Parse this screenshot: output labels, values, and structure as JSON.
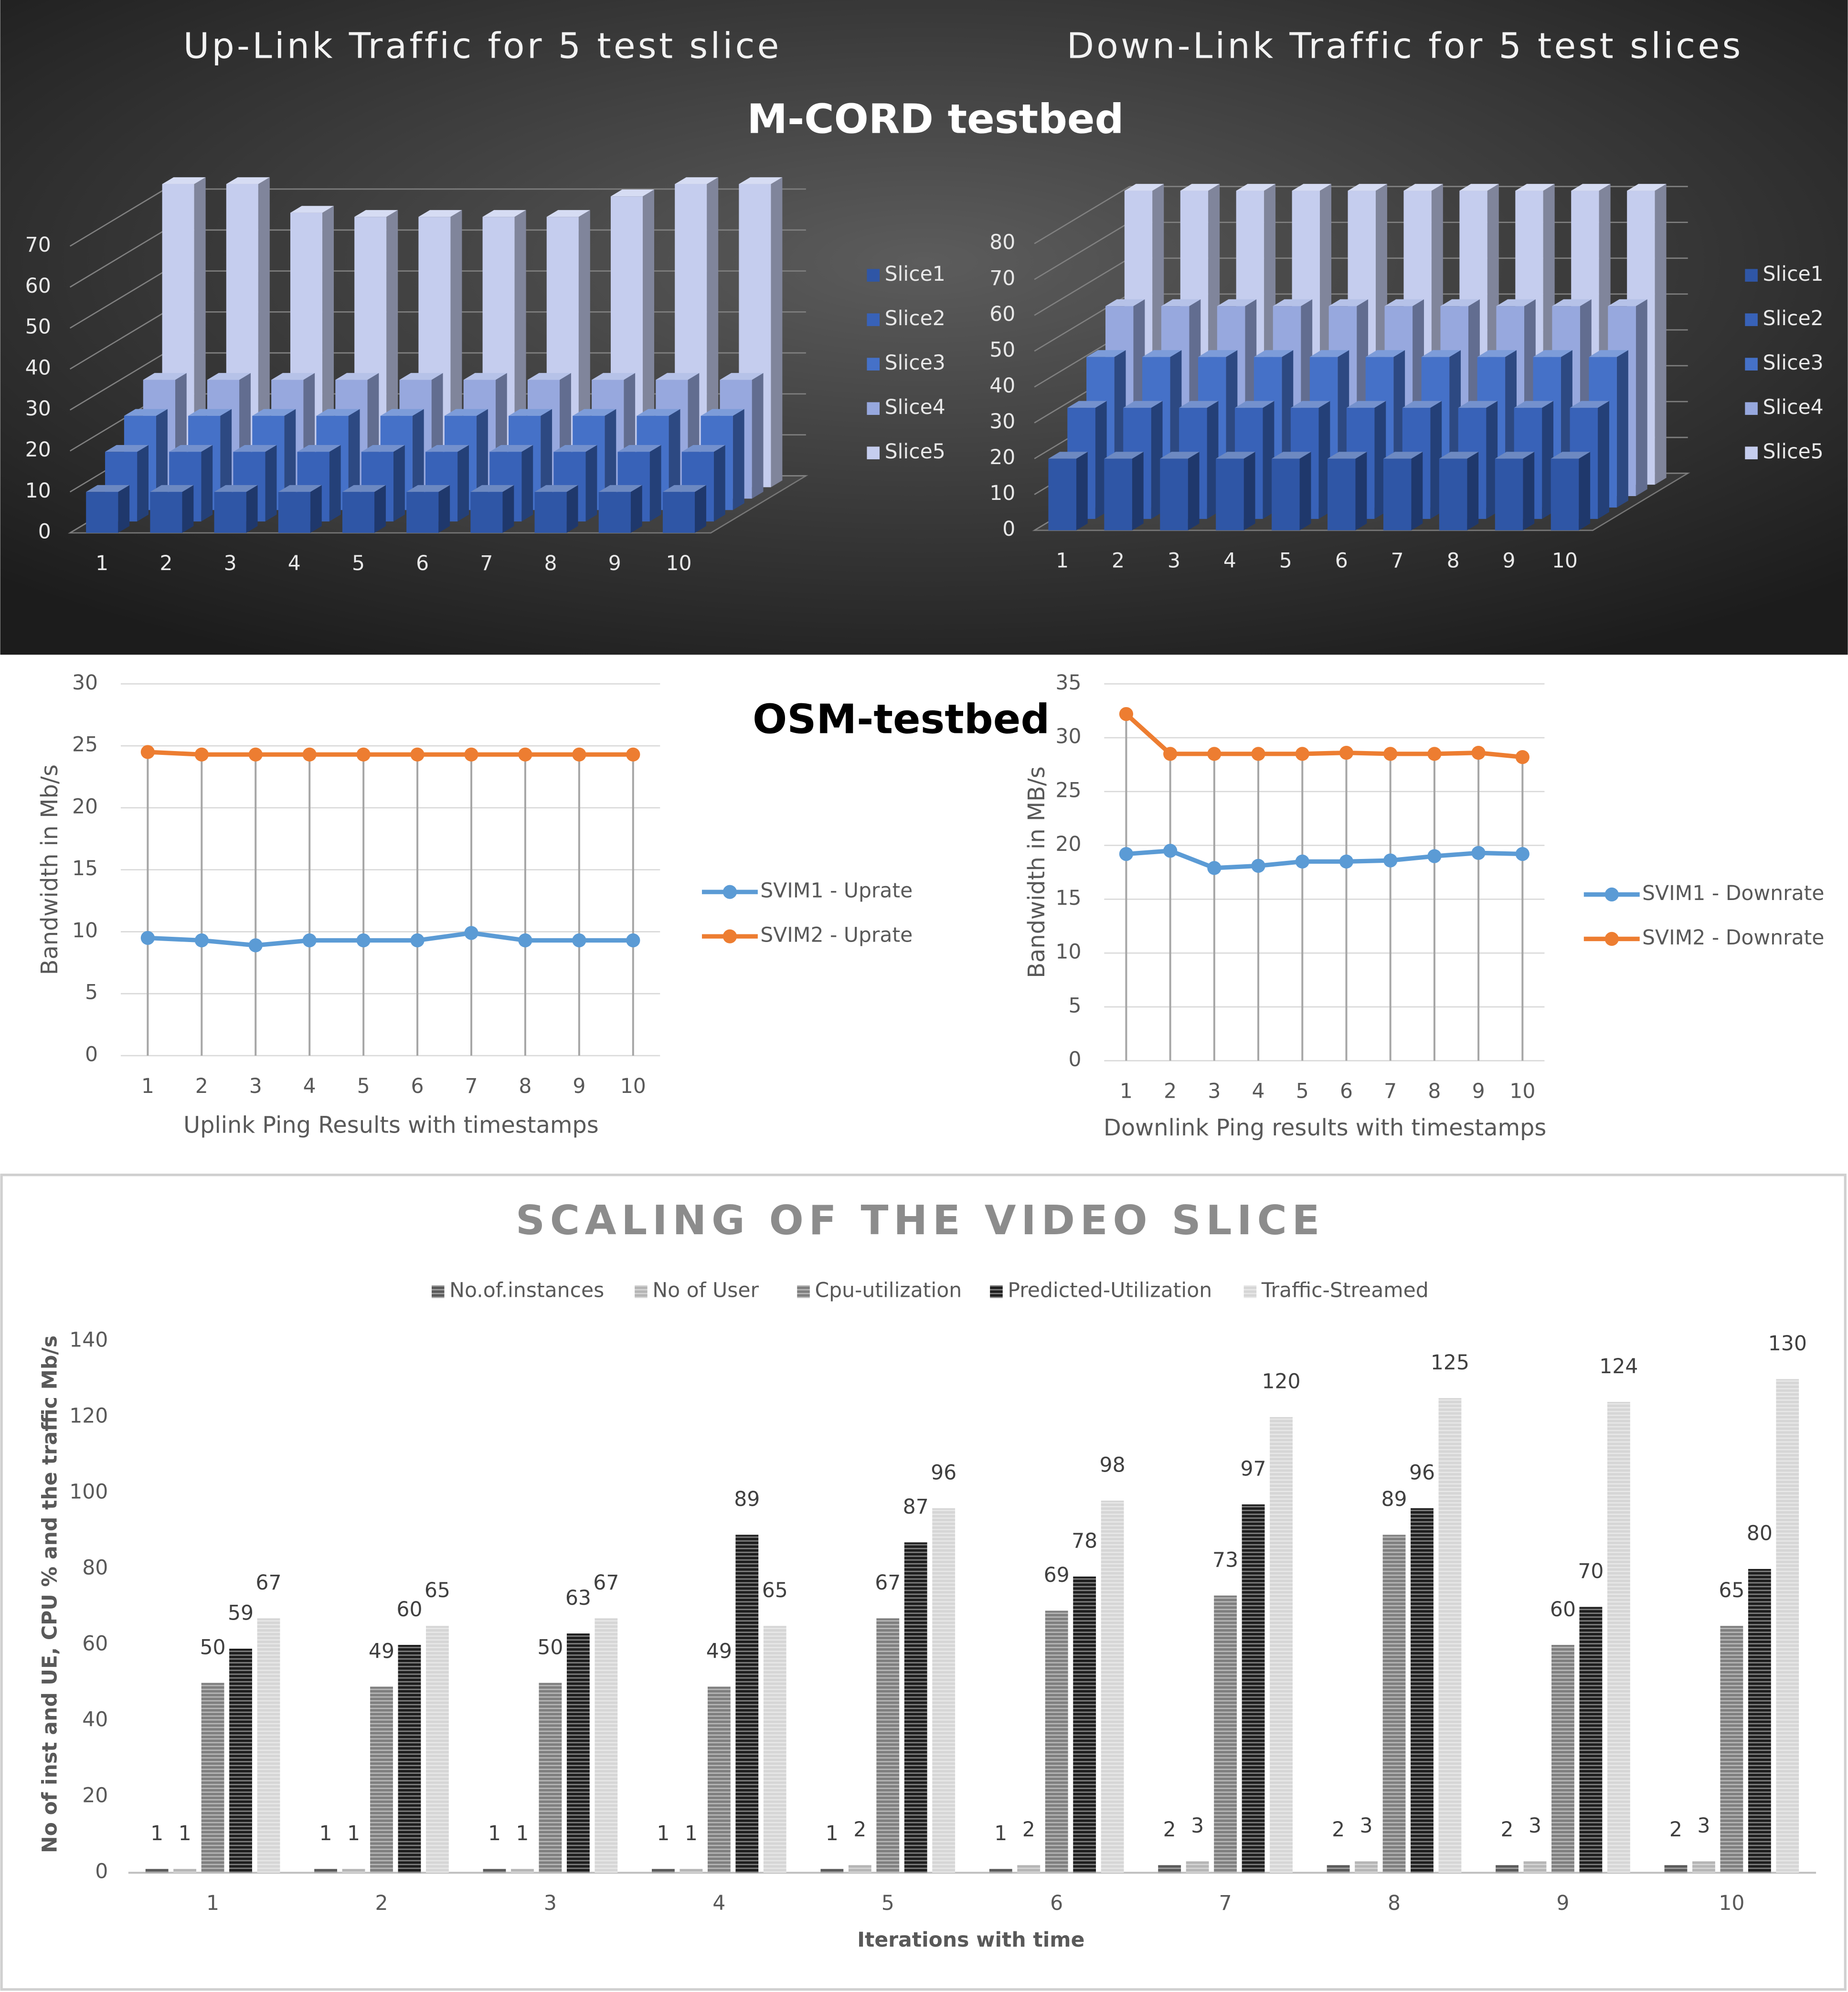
{
  "headings": [
    "M-CORD testbed",
    "OSM-testbed"
  ],
  "chart_data": [
    {
      "type": "bar3d",
      "title": "Up-Link Traffic for 5 test slice",
      "categories": [
        "1",
        "2",
        "3",
        "4",
        "5",
        "6",
        "7",
        "8",
        "9",
        "10"
      ],
      "series": [
        {
          "name": "Slice1",
          "color": "#2f56a6",
          "values": [
            10,
            10,
            10,
            10,
            10,
            10,
            10,
            10,
            10,
            10
          ]
        },
        {
          "name": "Slice2",
          "color": "#3862b8",
          "values": [
            17,
            17,
            17,
            17,
            17,
            17,
            17,
            17,
            17,
            17
          ]
        },
        {
          "name": "Slice3",
          "color": "#4571c8",
          "values": [
            23,
            23,
            23,
            23,
            23,
            23,
            23,
            23,
            23,
            23
          ]
        },
        {
          "name": "Slice4",
          "color": "#97a8de",
          "values": [
            29,
            29,
            29,
            29,
            29,
            29,
            29,
            29,
            29,
            29
          ]
        },
        {
          "name": "Slice5",
          "color": "#c5cdee",
          "values": [
            74,
            74,
            67,
            66,
            66,
            66,
            66,
            71,
            74,
            74
          ]
        }
      ],
      "ylim": [
        0,
        70
      ],
      "yticks": [
        0,
        10,
        20,
        30,
        40,
        50,
        60,
        70
      ],
      "grid": true,
      "legend": "right"
    },
    {
      "type": "bar3d",
      "title": "Down-Link Traffic for 5 test slices",
      "categories": [
        "1",
        "2",
        "3",
        "4",
        "5",
        "6",
        "7",
        "8",
        "9",
        "10"
      ],
      "series": [
        {
          "name": "Slice1",
          "color": "#2f56a6",
          "values": [
            20,
            20,
            20,
            20,
            20,
            20,
            20,
            20,
            20,
            20
          ]
        },
        {
          "name": "Slice2",
          "color": "#3862b8",
          "values": [
            31,
            31,
            31,
            31,
            31,
            31,
            31,
            31,
            31,
            31
          ]
        },
        {
          "name": "Slice3",
          "color": "#4571c8",
          "values": [
            42,
            42,
            42,
            42,
            42,
            42,
            42,
            42,
            42,
            42
          ]
        },
        {
          "name": "Slice4",
          "color": "#97a8de",
          "values": [
            53,
            53,
            53,
            53,
            53,
            53,
            53,
            53,
            53,
            53
          ]
        },
        {
          "name": "Slice5",
          "color": "#c5cdee",
          "values": [
            82,
            82,
            82,
            82,
            82,
            82,
            82,
            82,
            82,
            82
          ]
        }
      ],
      "ylim": [
        0,
        80
      ],
      "yticks": [
        0,
        10,
        20,
        30,
        40,
        50,
        60,
        70,
        80
      ],
      "grid": true,
      "legend": "right"
    },
    {
      "type": "line",
      "x_label": "Uplink Ping Results with timestamps",
      "y_label": "Bandwidth in Mb/s",
      "categories": [
        "1",
        "2",
        "3",
        "4",
        "5",
        "6",
        "7",
        "8",
        "9",
        "10"
      ],
      "series": [
        {
          "name": "SVIM1 - Uprate",
          "color": "#5b9bd5",
          "values": [
            9.5,
            9.3,
            8.9,
            9.3,
            9.3,
            9.3,
            9.9,
            9.3,
            9.3,
            9.3
          ]
        },
        {
          "name": "SVIM2 - Uprate",
          "color": "#ed7d31",
          "values": [
            24.5,
            24.3,
            24.3,
            24.3,
            24.3,
            24.3,
            24.3,
            24.3,
            24.3,
            24.3
          ]
        }
      ],
      "ylim": [
        0,
        30
      ],
      "yticks": [
        0,
        5,
        10,
        15,
        20,
        25,
        30
      ],
      "grid": true,
      "legend": "right"
    },
    {
      "type": "line",
      "x_label": "Downlink Ping results with timestamps",
      "y_label": "Bandwidth in MB/s",
      "categories": [
        "1",
        "2",
        "3",
        "4",
        "5",
        "6",
        "7",
        "8",
        "9",
        "10"
      ],
      "series": [
        {
          "name": "SVIM1 - Downrate",
          "color": "#5b9bd5",
          "values": [
            19.2,
            19.5,
            17.9,
            18.1,
            18.5,
            18.5,
            18.6,
            19,
            19.3,
            19.2
          ]
        },
        {
          "name": "SVIM2 - Downrate",
          "color": "#ed7d31",
          "values": [
            32.2,
            28.5,
            28.5,
            28.5,
            28.5,
            28.6,
            28.5,
            28.5,
            28.6,
            28.2
          ]
        }
      ],
      "ylim": [
        0,
        35
      ],
      "yticks": [
        0,
        5,
        10,
        15,
        20,
        25,
        30,
        35
      ],
      "grid": true,
      "legend": "right"
    },
    {
      "type": "bar",
      "title": "SCALING OF THE VIDEO SLICE",
      "x_label": "Iterations with time",
      "y_label": "No of inst and UE, CPU % and the traffic Mb/s",
      "categories": [
        "1",
        "2",
        "3",
        "4",
        "5",
        "6",
        "7",
        "8",
        "9",
        "10"
      ],
      "series": [
        {
          "name": "No.of.instances",
          "color": "#5a5a5a",
          "values": [
            1,
            1,
            1,
            1,
            1,
            1,
            2,
            2,
            2,
            2
          ]
        },
        {
          "name": "No of User",
          "color": "#b5b5b5",
          "values": [
            1,
            1,
            1,
            1,
            2,
            2,
            3,
            3,
            3,
            3
          ]
        },
        {
          "name": "Cpu-utilization",
          "color": "#7f7f7f",
          "values": [
            50,
            49,
            50,
            49,
            67,
            69,
            73,
            89,
            60,
            65
          ]
        },
        {
          "name": "Predicted-Utilization",
          "color": "#1e1e1e",
          "values": [
            59,
            60,
            63,
            89,
            87,
            78,
            97,
            96,
            70,
            80
          ]
        },
        {
          "name": "Traffic-Streamed",
          "color": "#d6d6d6",
          "values": [
            67,
            65,
            67,
            65,
            96,
            98,
            120,
            125,
            124,
            130
          ]
        }
      ],
      "ylim": [
        0,
        140
      ],
      "yticks": [
        0,
        20,
        40,
        60,
        80,
        100,
        120,
        140
      ],
      "legend": "top"
    }
  ]
}
